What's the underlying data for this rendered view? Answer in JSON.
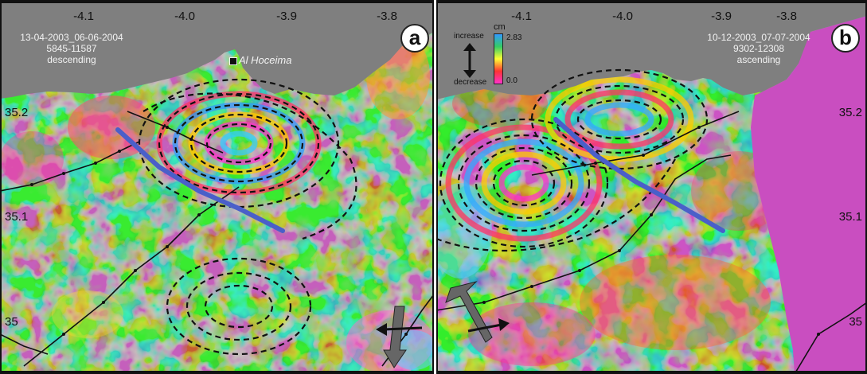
{
  "colors": {
    "land_green": "#7fd36b",
    "sea_gray": "#7f7f7f",
    "fault_blue": "#4a5fc9",
    "mask_magenta": "#c94ec0"
  },
  "panel_a": {
    "badge": "a",
    "ticks_top": [
      "-4.1",
      "-4.0",
      "-3.9",
      "-3.8"
    ],
    "ticks_left": [
      "35.2",
      "35.1",
      "35"
    ],
    "info_dates": "13-04-2003_06-06-2004",
    "info_orbits": "5845-11587",
    "info_track": "descending",
    "city": "Al Hoceima",
    "icons": [
      "city-marker-icon",
      "flight-direction-arrow-icon",
      "look-direction-arrow-icon"
    ]
  },
  "panel_b": {
    "badge": "b",
    "ticks_top": [
      "-4.1",
      "-4.0",
      "-3.9",
      "-3.8"
    ],
    "ticks_right": [
      "35.2",
      "35.1",
      "35"
    ],
    "info_dates": "10-12-2003_07-07-2004",
    "info_orbits": "9302-12308",
    "info_track": "ascending",
    "legend": {
      "unit": "cm",
      "max_label": "2.83",
      "min_label": "0.0",
      "increase_label": "increase",
      "decrease_label": "decrease",
      "icon": "double-arrow-icon"
    },
    "icons": [
      "flight-direction-arrow-icon",
      "look-direction-arrow-icon"
    ]
  }
}
